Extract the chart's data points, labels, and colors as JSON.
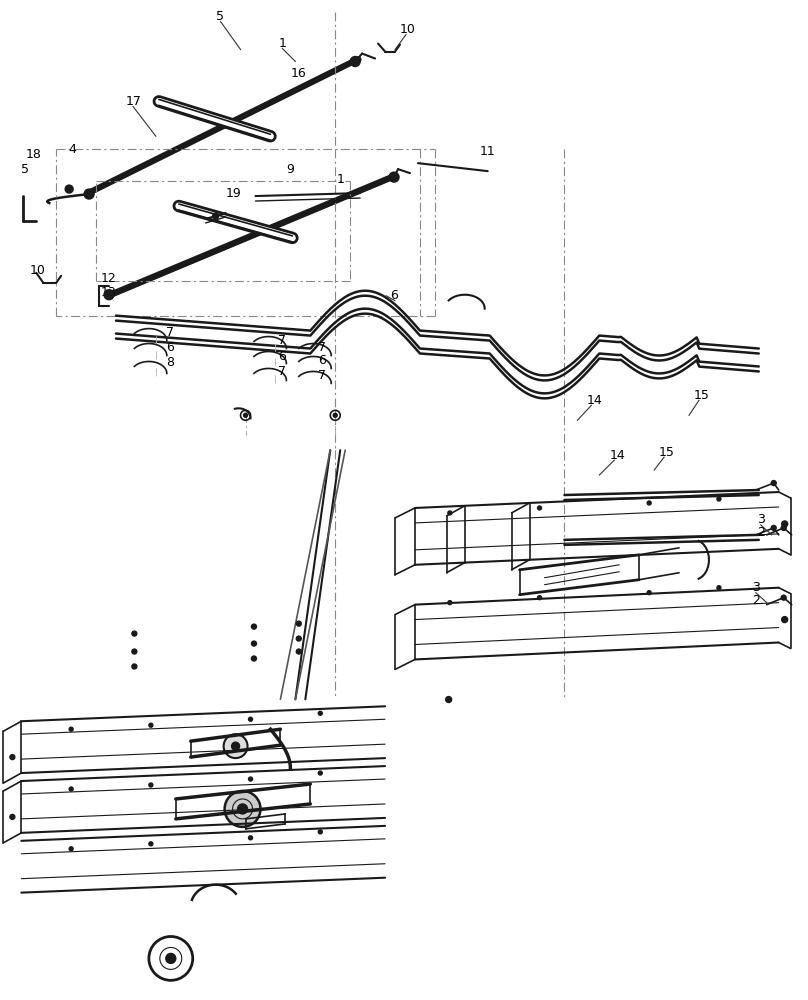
{
  "bg_color": "#ffffff",
  "line_color": "#1a1a1a",
  "figsize": [
    8.08,
    10.0
  ],
  "dpi": 100
}
